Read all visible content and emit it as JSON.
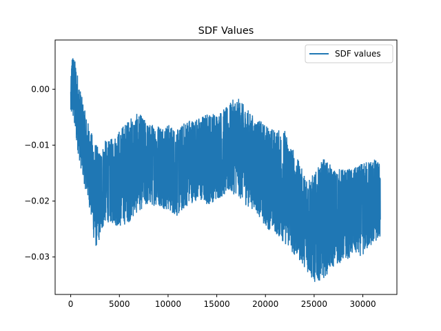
{
  "chart_data": {
    "type": "line",
    "title": "SDF Values",
    "xlabel": "",
    "ylabel": "",
    "xlim": [
      -1600,
      33500
    ],
    "ylim": [
      -0.0367,
      0.0088
    ],
    "xticks": [
      0,
      5000,
      10000,
      15000,
      20000,
      25000,
      30000
    ],
    "xtick_labels": [
      "0",
      "5000",
      "10000",
      "15000",
      "20000",
      "25000",
      "30000"
    ],
    "yticks": [
      0.0,
      -0.01,
      -0.02,
      -0.03
    ],
    "ytick_labels": [
      "0.00",
      "−0.01",
      "−0.02",
      "−0.03"
    ],
    "grid": false,
    "legend_position": "top-right",
    "series": [
      {
        "name": "SDF values",
        "color": "#1f77b4",
        "x_range": [
          0,
          31800
        ],
        "envelope": {
          "x": [
            0,
            150,
            300,
            500,
            700,
            1000,
            1500,
            2000,
            2500,
            3000,
            3500,
            4000,
            5000,
            6000,
            7000,
            8000,
            9000,
            10000,
            11000,
            12000,
            13000,
            14000,
            15000,
            16000,
            17000,
            18000,
            19000,
            20000,
            21000,
            22000,
            23000,
            24000,
            25000,
            26000,
            27000,
            28000,
            29000,
            30000,
            31000,
            31800
          ],
          "max": [
            0.001,
            0.007,
            0.006,
            0.005,
            0.003,
            0.0,
            -0.004,
            -0.007,
            -0.009,
            -0.011,
            -0.009,
            -0.009,
            -0.007,
            -0.005,
            -0.004,
            -0.006,
            -0.006,
            -0.006,
            -0.007,
            -0.005,
            -0.005,
            -0.004,
            -0.004,
            -0.003,
            -0.001,
            -0.003,
            -0.005,
            -0.006,
            -0.007,
            -0.007,
            -0.011,
            -0.015,
            -0.015,
            -0.012,
            -0.014,
            -0.014,
            -0.014,
            -0.013,
            -0.012,
            -0.013
          ],
          "min": [
            -0.005,
            -0.005,
            -0.006,
            -0.009,
            -0.011,
            -0.014,
            -0.018,
            -0.022,
            -0.029,
            -0.027,
            -0.024,
            -0.024,
            -0.025,
            -0.024,
            -0.022,
            -0.021,
            -0.021,
            -0.022,
            -0.023,
            -0.021,
            -0.02,
            -0.021,
            -0.02,
            -0.019,
            -0.019,
            -0.021,
            -0.022,
            -0.025,
            -0.026,
            -0.028,
            -0.03,
            -0.032,
            -0.035,
            -0.034,
            -0.032,
            -0.031,
            -0.03,
            -0.03,
            -0.028,
            -0.027
          ]
        }
      }
    ]
  }
}
